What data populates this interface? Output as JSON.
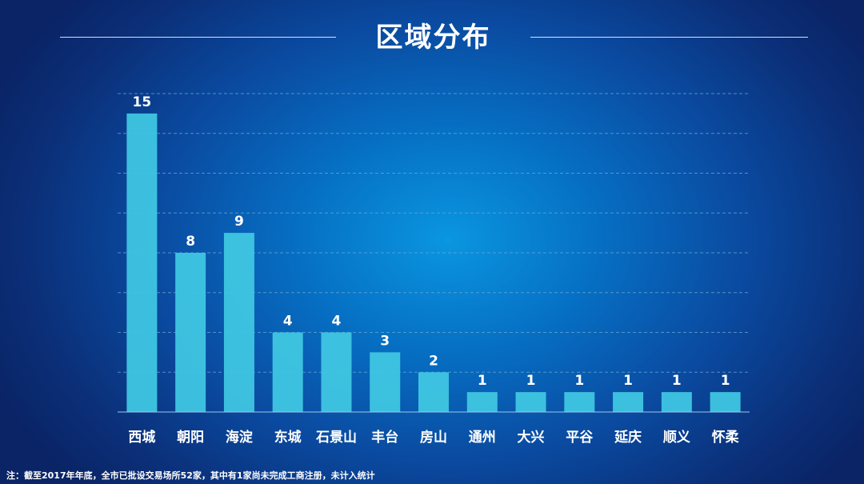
{
  "title": "区域分布",
  "footnote": "注：截至2017年年底，全市已批设交易场所52家，其中有1家尚未完成工商注册，未计入统计",
  "colors": {
    "bar": "#3fc6e2",
    "gridline": "#6aa8d8",
    "text": "#ffffff"
  },
  "chart_data": {
    "type": "bar",
    "categories": [
      "西城",
      "朝阳",
      "海淀",
      "东城",
      "石景山",
      "丰台",
      "房山",
      "通州",
      "大兴",
      "平谷",
      "延庆",
      "顺义",
      "怀柔"
    ],
    "values": [
      15,
      8,
      9,
      4,
      4,
      3,
      2,
      1,
      1,
      1,
      1,
      1,
      1
    ],
    "ylim": [
      0,
      16
    ],
    "grid": true,
    "grid_step": 2,
    "data_labels": true,
    "legend": "none"
  }
}
